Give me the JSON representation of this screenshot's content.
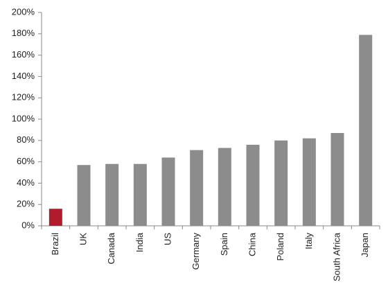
{
  "chart_data": {
    "type": "bar",
    "categories": [
      "Brazil",
      "UK",
      "Canada",
      "India",
      "US",
      "Germany",
      "Spain",
      "China",
      "Poland",
      "Italy",
      "South Africa",
      "Japan"
    ],
    "values": [
      16,
      57,
      58,
      58,
      64,
      71,
      73,
      76,
      80,
      82,
      87,
      179
    ],
    "colors": [
      "#b01c2e",
      "#8c8c8c",
      "#8c8c8c",
      "#8c8c8c",
      "#8c8c8c",
      "#8c8c8c",
      "#8c8c8c",
      "#8c8c8c",
      "#8c8c8c",
      "#8c8c8c",
      "#8c8c8c",
      "#8c8c8c"
    ],
    "ylim": [
      0,
      200
    ],
    "yticks": [
      {
        "value": 0,
        "label": "0%"
      },
      {
        "value": 20,
        "label": "20%"
      },
      {
        "value": 40,
        "label": "40%"
      },
      {
        "value": 60,
        "label": "60%"
      },
      {
        "value": 80,
        "label": "80%"
      },
      {
        "value": 100,
        "label": "100%"
      },
      {
        "value": 120,
        "label": "120%"
      },
      {
        "value": 140,
        "label": "140%"
      },
      {
        "value": 160,
        "label": "160%"
      },
      {
        "value": 180,
        "label": "180%"
      },
      {
        "value": 200,
        "label": "200%"
      }
    ],
    "grid": false
  }
}
